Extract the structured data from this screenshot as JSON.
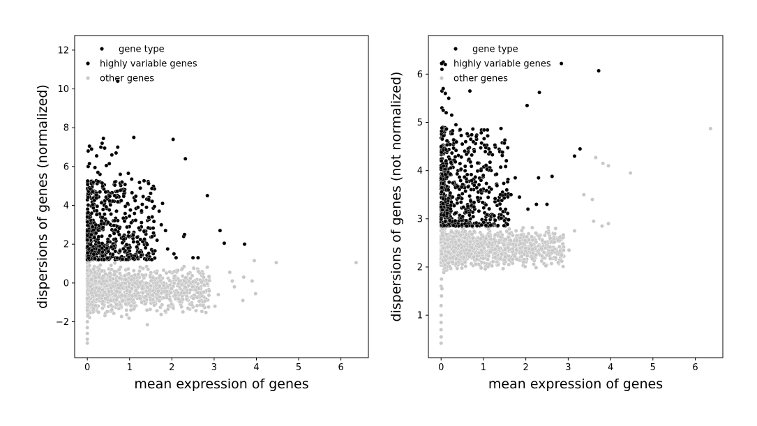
{
  "colors": {
    "highly_variable": "#000000",
    "other": "#c8c8c8",
    "axis": "#000000",
    "background": "#ffffff"
  },
  "chart_data": [
    {
      "type": "scatter",
      "xlabel": "mean expression of genes",
      "ylabel": "dispersions of genes (normalized)",
      "xlim": [
        -0.3,
        6.65
      ],
      "ylim": [
        -3.85,
        12.75
      ],
      "xticks": [
        0,
        1,
        2,
        3,
        4,
        5,
        6
      ],
      "yticks": [
        -2,
        0,
        2,
        4,
        6,
        8,
        10,
        12
      ],
      "grid": false,
      "legend": {
        "placement": "top-left",
        "title": "gene type",
        "entries": [
          "highly variable genes",
          "other genes"
        ]
      },
      "series": [
        {
          "name": "highly variable genes",
          "points": [
            [
              0.02,
              6.8
            ],
            [
              0.05,
              7.05
            ],
            [
              0.1,
              6.9
            ],
            [
              0.22,
              6.55
            ],
            [
              0.32,
              7.0
            ],
            [
              0.35,
              7.2
            ],
            [
              0.38,
              7.45
            ],
            [
              0.41,
              6.95
            ],
            [
              0.58,
              6.6
            ],
            [
              0.68,
              6.7
            ],
            [
              0.72,
              7.0
            ],
            [
              1.1,
              7.5
            ],
            [
              2.03,
              7.4
            ],
            [
              2.32,
              6.4
            ],
            [
              0.72,
              10.4
            ],
            [
              0.02,
              6.0
            ],
            [
              0.05,
              6.15
            ],
            [
              0.18,
              5.95
            ],
            [
              0.3,
              5.6
            ],
            [
              0.45,
              6.05
            ],
            [
              0.52,
              6.15
            ],
            [
              0.78,
              5.6
            ],
            [
              0.97,
              5.65
            ],
            [
              1.05,
              5.35
            ],
            [
              0.65,
              5.2
            ],
            [
              0.35,
              5.15
            ],
            [
              0.25,
              5.7
            ],
            [
              1.3,
              4.05
            ],
            [
              1.45,
              4.3
            ],
            [
              1.78,
              4.1
            ],
            [
              1.4,
              3.9
            ],
            [
              1.7,
              3.7
            ],
            [
              2.84,
              4.5
            ],
            [
              0.8,
              4.25
            ],
            [
              0.9,
              3.95
            ],
            [
              1.75,
              3.0
            ],
            [
              1.85,
              2.7
            ],
            [
              1.65,
              2.2
            ],
            [
              1.9,
              1.75
            ],
            [
              2.05,
              1.5
            ],
            [
              2.28,
              2.4
            ],
            [
              2.3,
              2.5
            ],
            [
              2.5,
              1.3
            ],
            [
              2.62,
              1.3
            ],
            [
              2.1,
              1.3
            ],
            [
              3.14,
              2.7
            ],
            [
              3.24,
              2.05
            ],
            [
              3.72,
              2.0
            ]
          ],
          "dense_cluster": {
            "count": 620,
            "x_range": [
              0.0,
              1.6
            ],
            "y_range": [
              1.2,
              5.3
            ],
            "seed": 11
          }
        },
        {
          "name": "other genes",
          "points": [
            [
              3.37,
              0.55
            ],
            [
              3.43,
              0.1
            ],
            [
              3.48,
              -0.2
            ],
            [
              3.7,
              0.3
            ],
            [
              3.9,
              0.1
            ],
            [
              3.95,
              1.15
            ],
            [
              4.47,
              1.05
            ],
            [
              6.36,
              1.05
            ],
            [
              3.68,
              -0.9
            ],
            [
              3.98,
              -0.55
            ],
            [
              3.1,
              -0.6
            ],
            [
              3.02,
              -1.2
            ],
            [
              1.42,
              -2.15
            ],
            [
              0.0,
              -2.6
            ],
            [
              0.0,
              -2.9
            ],
            [
              0.0,
              -3.1
            ],
            [
              0.0,
              -2.3
            ],
            [
              0.0,
              -2.0
            ],
            [
              0.01,
              -1.7
            ],
            [
              0.0,
              -1.4
            ],
            [
              0.01,
              -1.1
            ],
            [
              0.0,
              -0.8
            ]
          ],
          "dense_cluster": {
            "count": 1400,
            "x_range": [
              0.0,
              2.9
            ],
            "y_range": [
              -1.9,
              1.25
            ],
            "seed": 23
          }
        }
      ]
    },
    {
      "type": "scatter",
      "xlabel": "mean expression of genes",
      "ylabel": "dispersions of genes (not normalized)",
      "xlim": [
        -0.3,
        6.65
      ],
      "ylim": [
        0.12,
        6.8
      ],
      "xticks": [
        0,
        1,
        2,
        3,
        4,
        5,
        6
      ],
      "yticks": [
        1,
        2,
        3,
        4,
        5,
        6
      ],
      "grid": false,
      "legend": {
        "placement": "top-left",
        "title": "gene type",
        "entries": [
          "highly variable genes",
          "other genes"
        ]
      },
      "series": [
        {
          "name": "highly variable genes",
          "points": [
            [
              0.02,
              6.22
            ],
            [
              0.05,
              6.25
            ],
            [
              0.1,
              6.2
            ],
            [
              0.02,
              6.1
            ],
            [
              0.02,
              5.65
            ],
            [
              0.05,
              5.7
            ],
            [
              0.1,
              5.6
            ],
            [
              0.18,
              5.5
            ],
            [
              0.68,
              5.65
            ],
            [
              2.32,
              5.62
            ],
            [
              2.03,
              5.35
            ],
            [
              2.84,
              6.22
            ],
            [
              3.72,
              6.07
            ],
            [
              0.02,
              5.3
            ],
            [
              0.05,
              5.25
            ],
            [
              0.12,
              5.2
            ],
            [
              0.25,
              5.15
            ],
            [
              0.35,
              4.95
            ],
            [
              0.45,
              4.85
            ],
            [
              0.5,
              4.55
            ],
            [
              0.58,
              4.6
            ],
            [
              0.7,
              4.65
            ],
            [
              1.1,
              4.72
            ],
            [
              3.28,
              4.45
            ],
            [
              3.15,
              4.3
            ],
            [
              2.3,
              3.85
            ],
            [
              2.62,
              3.88
            ],
            [
              1.75,
              3.85
            ],
            [
              1.85,
              3.45
            ],
            [
              1.65,
              3.5
            ],
            [
              2.05,
              3.2
            ],
            [
              2.25,
              3.3
            ],
            [
              2.5,
              3.3
            ],
            [
              1.4,
              3.5
            ],
            [
              1.55,
              3.6
            ]
          ],
          "dense_cluster": {
            "count": 620,
            "x_range": [
              0.0,
              1.6
            ],
            "y_range": [
              2.85,
              4.9
            ],
            "seed": 37
          }
        },
        {
          "name": "other genes",
          "points": [
            [
              3.37,
              3.5
            ],
            [
              3.57,
              3.4
            ],
            [
              3.65,
              4.27
            ],
            [
              3.82,
              4.15
            ],
            [
              3.95,
              4.1
            ],
            [
              4.47,
              3.95
            ],
            [
              6.36,
              4.87
            ],
            [
              3.95,
              2.9
            ],
            [
              3.8,
              2.85
            ],
            [
              3.6,
              2.95
            ],
            [
              3.15,
              2.75
            ],
            [
              3.02,
              2.35
            ],
            [
              0.0,
              0.42
            ],
            [
              0.0,
              0.55
            ],
            [
              0.0,
              0.7
            ],
            [
              0.0,
              0.85
            ],
            [
              0.0,
              1.0
            ],
            [
              0.0,
              1.2
            ],
            [
              0.01,
              1.4
            ],
            [
              0.0,
              1.6
            ],
            [
              0.01,
              1.75
            ],
            [
              0.02,
              1.55
            ]
          ],
          "dense_cluster": {
            "count": 1400,
            "x_range": [
              0.0,
              2.9
            ],
            "y_range": [
              1.85,
              2.95
            ],
            "seed": 53
          }
        }
      ]
    }
  ]
}
